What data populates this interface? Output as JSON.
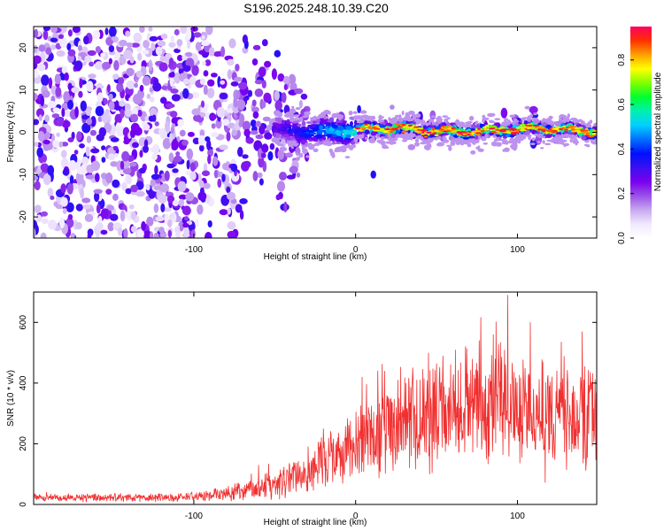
{
  "chart_data": [
    {
      "type": "heatmap",
      "title": "S196.2025.248.10.39.C20",
      "xlabel": "Height of straight line (km)",
      "ylabel": "Frequency (Hz)",
      "xlim": [
        -199,
        149
      ],
      "ylim": [
        -25,
        25
      ],
      "xticks": [
        -100,
        0,
        100
      ],
      "yticks": [
        -20,
        -10,
        0,
        10,
        20
      ],
      "colorbar": {
        "label": "Normalized spectral amplitude",
        "range": [
          0,
          0.95
        ],
        "ticks": [
          0.0,
          0.2,
          0.4,
          0.6,
          0.8
        ],
        "colormap": "rainbow",
        "stops": [
          "#ffffff",
          "#f0e8ff",
          "#c8a8f0",
          "#9a50e8",
          "#7a00f0",
          "#3a10f0",
          "#0010ff",
          "#0070ff",
          "#00d0ff",
          "#00f0b0",
          "#00ff30",
          "#80ff00",
          "#ffff00",
          "#ffa000",
          "#ff3000",
          "#ff0060"
        ]
      },
      "description_of_data": {
        "ridge_frequency_hz": 0.5,
        "ridge_width_hz": 1.5,
        "noise_fades_above_km": -70,
        "signal_emerges_km": -30,
        "strong_signal_range_km": [
          0,
          149
        ]
      }
    },
    {
      "type": "line",
      "xlabel": "Height of straight line (km)",
      "ylabel": "SNR (10 * v/v)",
      "xlim": [
        -199,
        149
      ],
      "ylim": [
        0,
        700
      ],
      "xticks": [
        -100,
        0,
        100
      ],
      "yticks": [
        0,
        200,
        400,
        600
      ],
      "color": "#f03030",
      "series": [
        {
          "name": "SNR",
          "envelope_x": [
            -199,
            -150,
            -100,
            -80,
            -60,
            -40,
            -20,
            0,
            10,
            20,
            30,
            40,
            50,
            60,
            70,
            80,
            90,
            100,
            110,
            120,
            130,
            140,
            149
          ],
          "baseline": [
            22,
            22,
            25,
            35,
            55,
            85,
            130,
            190,
            220,
            250,
            270,
            290,
            300,
            300,
            310,
            320,
            320,
            310,
            300,
            300,
            300,
            290,
            290
          ],
          "spread": [
            15,
            15,
            20,
            30,
            50,
            70,
            100,
            140,
            170,
            190,
            200,
            200,
            210,
            220,
            220,
            230,
            230,
            220,
            220,
            210,
            210,
            210,
            200
          ],
          "peaks": [
            [
              -60,
              130
            ],
            [
              -20,
              250
            ],
            [
              4,
              420
            ],
            [
              18,
              440
            ],
            [
              45,
              500
            ],
            [
              85,
              560
            ],
            [
              94,
              690
            ],
            [
              108,
              600
            ],
            [
              140,
              570
            ]
          ]
        }
      ]
    }
  ],
  "colors": {
    "axis": "#000000",
    "snr_line": "#f03030"
  }
}
